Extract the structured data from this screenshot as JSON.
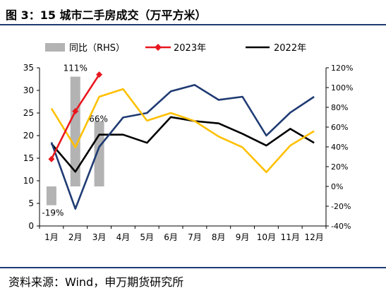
{
  "figure": {
    "title": "图 3：15 城市二手房成交（万平方米）",
    "source": "资料来源：Wind，申万期货研究所"
  },
  "chart_data": {
    "type": "bar+line",
    "categories": [
      "1月",
      "2月",
      "3月",
      "4月",
      "5月",
      "6月",
      "7月",
      "8月",
      "9月",
      "10月",
      "11月",
      "12月"
    ],
    "left_axis": {
      "min": 0,
      "max": 35,
      "ticks": [
        "0",
        "5",
        "10",
        "15",
        "20",
        "25",
        "30",
        "35"
      ]
    },
    "right_axis": {
      "min": -40,
      "max": 120,
      "ticks": [
        "-40%",
        "-20%",
        "0%",
        "20%",
        "40%",
        "60%",
        "80%",
        "100%",
        "120%"
      ]
    },
    "legend": {
      "position": "top",
      "entries": [
        "同比（RHS）",
        "2023年",
        "2022年"
      ]
    },
    "series": [
      {
        "name": "同比（RHS）",
        "type": "bar",
        "axis": "right",
        "color": "#b3b3b3",
        "values": [
          -19,
          111,
          66,
          null,
          null,
          null,
          null,
          null,
          null,
          null,
          null,
          null
        ],
        "labels": [
          "-19%",
          "111%",
          "66%"
        ]
      },
      {
        "name": "2023年",
        "type": "line",
        "axis": "left",
        "color": "#e8171e",
        "marker": "diamond",
        "values": [
          14.8,
          25.4,
          33.5,
          null,
          null,
          null,
          null,
          null,
          null,
          null,
          null,
          null
        ]
      },
      {
        "name": "2022年",
        "type": "line",
        "axis": "left",
        "color": "#000000",
        "values": [
          18.2,
          12.0,
          20.2,
          20.2,
          18.4,
          24.1,
          23.2,
          22.7,
          20.4,
          17.8,
          21.5,
          18.4
        ]
      },
      {
        "type": "line",
        "axis": "left",
        "color": "#1f3b73",
        "values": [
          18.5,
          3.8,
          17.5,
          24.0,
          25.0,
          29.8,
          31.2,
          27.9,
          28.6,
          20.0,
          25.1,
          28.6
        ]
      },
      {
        "type": "line",
        "axis": "left",
        "color": "#ffc000",
        "values": [
          26.0,
          17.4,
          28.6,
          30.3,
          23.3,
          25.0,
          23.2,
          19.8,
          17.4,
          11.9,
          17.8,
          21.0
        ]
      }
    ]
  }
}
